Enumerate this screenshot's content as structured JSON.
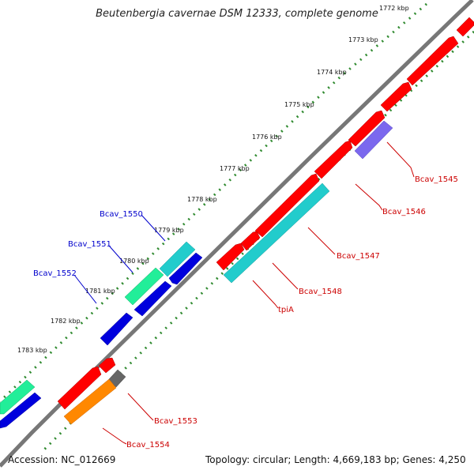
{
  "title": "Beutenbergia cavernae DSM 12333, complete genome",
  "accession": "Accession: NC_012669",
  "topology": "Topology: circular; Length: 4,669,183 bp; Genes: 4,250",
  "colors": {
    "backbone": "#808080",
    "tick": "#2f8a2f",
    "red": "#ff0000",
    "blue": "#0000dd",
    "cyan": "#22cccc",
    "green": "#22ee99",
    "purple": "#7b68ee",
    "orange": "#ff8800",
    "gray": "#666666",
    "label_forward": "#cc0000",
    "label_reverse": "#0000cc"
  },
  "ticks": [
    {
      "label": "1772 kbp"
    },
    {
      "label": "1773 kbp"
    },
    {
      "label": "1774 kbp"
    },
    {
      "label": "1775 kbp"
    },
    {
      "label": "1776 kbp"
    },
    {
      "label": "1777 kbp"
    },
    {
      "label": "1778 kbp"
    },
    {
      "label": "1779 kbp"
    },
    {
      "label": "1780 kbp"
    },
    {
      "label": "1781 kbp"
    },
    {
      "label": "1782 kbp"
    },
    {
      "label": "1783 kbp"
    }
  ],
  "gene_labels": [
    {
      "text": "Bcav_1545",
      "strand": "forward"
    },
    {
      "text": "Bcav_1546",
      "strand": "forward"
    },
    {
      "text": "Bcav_1547",
      "strand": "forward"
    },
    {
      "text": "Bcav_1548",
      "strand": "forward"
    },
    {
      "text": "tpiA",
      "strand": "forward"
    },
    {
      "text": "Bcav_1550",
      "strand": "reverse"
    },
    {
      "text": "Bcav_1551",
      "strand": "reverse"
    },
    {
      "text": "Bcav_1552",
      "strand": "reverse"
    },
    {
      "text": "Bcav_1553",
      "strand": "forward"
    },
    {
      "text": "Bcav_1554",
      "strand": "forward"
    }
  ]
}
